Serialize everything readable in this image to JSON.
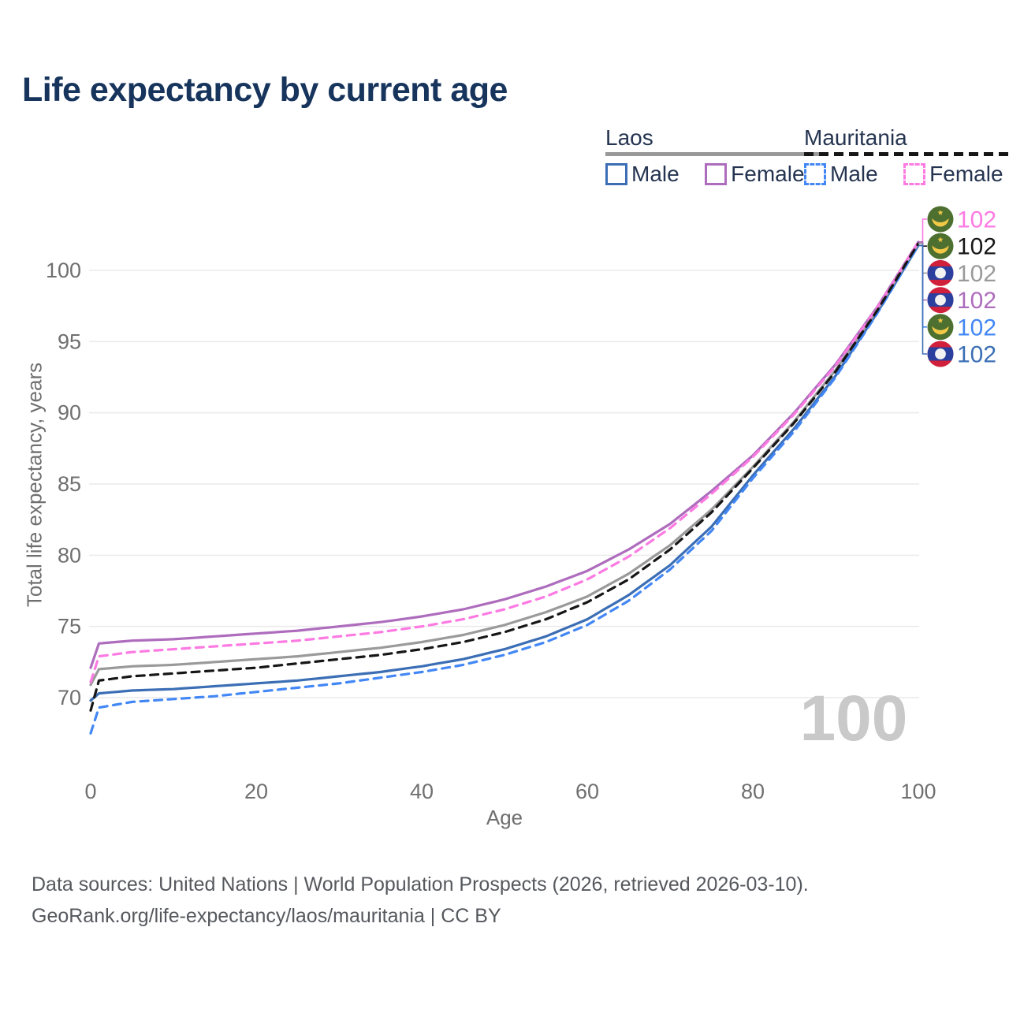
{
  "header": {
    "title": "Life expectancy by current age"
  },
  "legend": {
    "groups": [
      {
        "label": "Laos",
        "line_style": "solid",
        "underline_color": "#999999",
        "items": [
          {
            "label": "Male",
            "color": "#3b6eb5"
          },
          {
            "label": "Female",
            "color": "#ae6cbd"
          }
        ]
      },
      {
        "label": "Mauritania",
        "line_style": "dashed",
        "underline_color": "#161616",
        "items": [
          {
            "label": "Male",
            "color": "#4287f5"
          },
          {
            "label": "Female",
            "color": "#fc7ae2"
          }
        ]
      }
    ]
  },
  "chart_data": {
    "type": "line",
    "title": "Life expectancy by current age",
    "xlabel": "Age",
    "ylabel": "Total life expectancy, years",
    "x_ticks": [
      0,
      20,
      40,
      60,
      80,
      100
    ],
    "y_ticks": [
      70,
      75,
      80,
      85,
      90,
      95,
      100
    ],
    "xlim": [
      0,
      100
    ],
    "ylim": [
      66,
      103
    ],
    "grid": "horizontal",
    "legend_position": "top-right",
    "watermark": "100",
    "ages": [
      0,
      1,
      5,
      10,
      15,
      20,
      25,
      30,
      35,
      40,
      45,
      50,
      55,
      60,
      65,
      70,
      75,
      80,
      85,
      90,
      95,
      100
    ],
    "series": [
      {
        "id": "laos_male",
        "name": "Laos Male",
        "color": "#3b6eb5",
        "dashed": false,
        "flag": "laos",
        "end_label": "102",
        "values": [
          69.8,
          70.3,
          70.5,
          70.6,
          70.8,
          71.0,
          71.2,
          71.5,
          71.8,
          72.2,
          72.7,
          73.4,
          74.3,
          75.5,
          77.2,
          79.3,
          82.0,
          85.6,
          88.9,
          92.6,
          97.0,
          101.75
        ]
      },
      {
        "id": "laos_female",
        "name": "Laos Female",
        "color": "#ae6cbd",
        "dashed": false,
        "flag": "laos",
        "end_label": "102",
        "values": [
          72.1,
          73.8,
          74.0,
          74.1,
          74.3,
          74.5,
          74.7,
          75.0,
          75.3,
          75.7,
          76.2,
          76.9,
          77.8,
          78.9,
          80.4,
          82.2,
          84.5,
          87.0,
          90.0,
          93.4,
          97.4,
          102.0
        ]
      },
      {
        "id": "laos_total",
        "name": "Laos",
        "color": "#9a9a9a",
        "dashed": false,
        "flag": "laos",
        "end_label": "102",
        "values": [
          70.9,
          72.0,
          72.2,
          72.3,
          72.5,
          72.7,
          72.9,
          73.2,
          73.5,
          73.9,
          74.4,
          75.1,
          76.0,
          77.1,
          78.7,
          80.7,
          83.2,
          86.2,
          89.4,
          93.0,
          97.2,
          101.9
        ]
      },
      {
        "id": "mauritania_male",
        "name": "Mauritania Male",
        "color": "#4287f5",
        "dashed": true,
        "flag": "mauritania",
        "end_label": "102",
        "values": [
          67.5,
          69.3,
          69.7,
          69.9,
          70.1,
          70.4,
          70.7,
          71.0,
          71.4,
          71.8,
          72.3,
          73.0,
          73.9,
          75.1,
          76.8,
          79.0,
          81.7,
          85.4,
          88.7,
          92.5,
          96.95,
          101.75
        ]
      },
      {
        "id": "mauritania_female",
        "name": "Mauritania Female",
        "color": "#fc7ae2",
        "dashed": true,
        "flag": "mauritania",
        "end_label": "102",
        "values": [
          71.1,
          72.9,
          73.2,
          73.4,
          73.6,
          73.8,
          74.0,
          74.3,
          74.6,
          75.0,
          75.5,
          76.2,
          77.1,
          78.3,
          79.9,
          81.9,
          84.3,
          86.9,
          89.9,
          93.3,
          97.35,
          102.0
        ]
      },
      {
        "id": "mauritania_total",
        "name": "Mauritania",
        "color": "#161616",
        "dashed": true,
        "flag": "mauritania",
        "end_label": "102",
        "values": [
          69.1,
          71.2,
          71.5,
          71.7,
          71.9,
          72.1,
          72.4,
          72.7,
          73.0,
          73.4,
          73.9,
          74.6,
          75.5,
          76.7,
          78.3,
          80.4,
          83.0,
          86.1,
          89.3,
          92.9,
          97.15,
          101.9
        ]
      }
    ],
    "end_label_order": [
      "mauritania_female",
      "mauritania_total",
      "laos_total",
      "laos_female",
      "mauritania_male",
      "laos_male"
    ],
    "flag_colors": {
      "laos_red": "#d1203b",
      "laos_blue": "#2b3f9e",
      "laos_circle": "#f2f2f2",
      "mauritania_green": "#4d7030",
      "mauritania_gold": "#f3c846"
    }
  },
  "footer": {
    "line1": "Data sources: United Nations | World Population Prospects (2026, retrieved 2026-03-10).",
    "line2": "GeoRank.org/life-expectancy/laos/mauritania | CC BY"
  }
}
